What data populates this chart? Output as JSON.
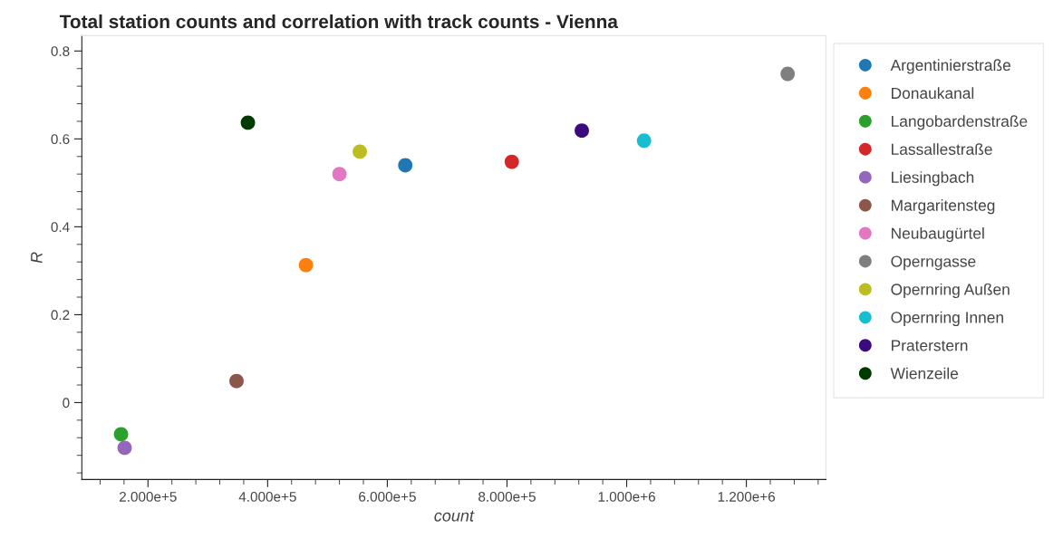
{
  "chart_data": {
    "type": "scatter",
    "title": "Total station counts and correlation with track counts - Vienna",
    "xlabel": "count",
    "ylabel": "R",
    "xlim": [
      89500,
      1333000
    ],
    "ylim": [
      -0.175,
      0.835
    ],
    "xticks": [
      {
        "value": 200000,
        "label": "2.000e+5"
      },
      {
        "value": 400000,
        "label": "4.000e+5"
      },
      {
        "value": 600000,
        "label": "6.000e+5"
      },
      {
        "value": 800000,
        "label": "8.000e+5"
      },
      {
        "value": 1000000,
        "label": "1.000e+6"
      },
      {
        "value": 1200000,
        "label": "1.200e+6"
      }
    ],
    "yticks": [
      0,
      0.2,
      0.4,
      0.6,
      0.8
    ],
    "grid": false,
    "legend": "right",
    "marker": "circle",
    "series": [
      {
        "name": "Argentinierstraße",
        "color": "#1f77b4",
        "x": [
          630000
        ],
        "values": [
          0.54
        ]
      },
      {
        "name": "Donaukanal",
        "color": "#ff7f0e",
        "x": [
          464000
        ],
        "values": [
          0.313
        ]
      },
      {
        "name": "Langobardenstraße",
        "color": "#2ca02c",
        "x": [
          155000
        ],
        "values": [
          -0.072
        ]
      },
      {
        "name": "Lassallestraße",
        "color": "#d62728",
        "x": [
          808000
        ],
        "values": [
          0.548
        ]
      },
      {
        "name": "Liesingbach",
        "color": "#9467bd",
        "x": [
          161000
        ],
        "values": [
          -0.103
        ]
      },
      {
        "name": "Margaritensteg",
        "color": "#8c564b",
        "x": [
          348000
        ],
        "values": [
          0.049
        ]
      },
      {
        "name": "Neubaugürtel",
        "color": "#e377c2",
        "x": [
          520000
        ],
        "values": [
          0.52
        ]
      },
      {
        "name": "Operngasse",
        "color": "#7f7f7f",
        "x": [
          1269000
        ],
        "values": [
          0.748
        ]
      },
      {
        "name": "Opernring Außen",
        "color": "#bcbd22",
        "x": [
          554000
        ],
        "values": [
          0.571
        ]
      },
      {
        "name": "Opernring Innen",
        "color": "#17becf",
        "x": [
          1029000
        ],
        "values": [
          0.596
        ]
      },
      {
        "name": "Praterstern",
        "color": "#3b0a7f",
        "x": [
          925000
        ],
        "values": [
          0.619
        ]
      },
      {
        "name": "Wienzeile",
        "color": "#003a00",
        "x": [
          367000
        ],
        "values": [
          0.637
        ]
      }
    ]
  }
}
